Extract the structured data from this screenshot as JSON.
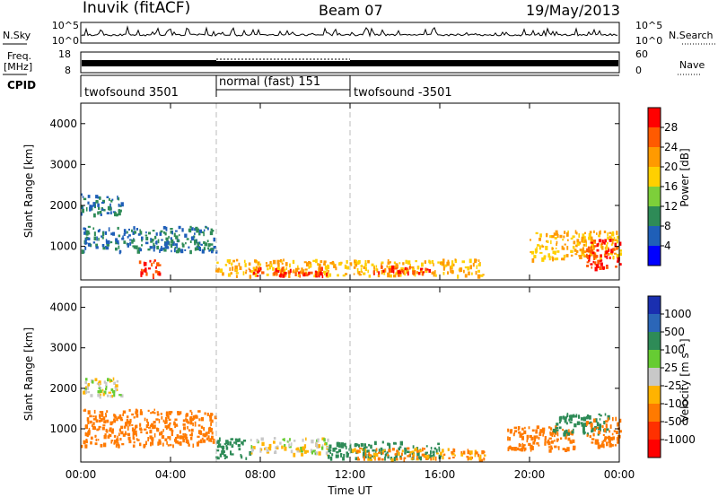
{
  "header": {
    "title": "Inuvik (fitACF)",
    "beam": "Beam 07",
    "date": "19/May/2013"
  },
  "sky_panel": {
    "left_label": "N.Sky",
    "right_label": "N.Search",
    "left_ticks": [
      "10^5",
      "10^0"
    ],
    "right_ticks": [
      "10^5",
      "10^0"
    ]
  },
  "freq_panel": {
    "left_label_line1": "Freq.",
    "left_label_line2": "[MHz]",
    "right_label": "Nave",
    "left_ticks": [
      "18",
      "8"
    ],
    "right_ticks": [
      "60",
      "0"
    ]
  },
  "cpid": {
    "label": "CPID",
    "segments": [
      {
        "text": "twofsound 3501",
        "start_hour": 0,
        "end_hour": 6
      },
      {
        "text": "normal (fast) 151",
        "start_hour": 6,
        "end_hour": 12
      },
      {
        "text": "twofsound -3501",
        "start_hour": 12,
        "end_hour": 24
      }
    ]
  },
  "x_axis": {
    "title": "Time UT",
    "ticks": [
      "00:00",
      "04:00",
      "08:00",
      "12:00",
      "16:00",
      "20:00",
      "00:00"
    ],
    "tick_hours": [
      0,
      4,
      8,
      12,
      16,
      20,
      24
    ]
  },
  "chart_data": [
    {
      "type": "heatmap",
      "title": "",
      "ylabel": "Slant Range [km]",
      "xlabel": "",
      "xlim": [
        0,
        24
      ],
      "ylim": [
        180,
        4500
      ],
      "yticks": [
        1000,
        2000,
        3000,
        4000
      ],
      "colorbar": {
        "label": "Power [dB]",
        "ticks": [
          "28",
          "24",
          "20",
          "16",
          "12",
          "8",
          "4"
        ],
        "colors": [
          "#ff0000",
          "#ff5a00",
          "#ff9a00",
          "#ffd000",
          "#7dcf3a",
          "#2e8b57",
          "#1f5fb8",
          "#0000ff"
        ]
      },
      "regions": [
        {
          "x": [
            0.0,
            1.8
          ],
          "y": [
            1800,
            2300
          ],
          "value": 8
        },
        {
          "x": [
            0.0,
            6.0
          ],
          "y": [
            900,
            1500
          ],
          "value": 8
        },
        {
          "x": [
            2.5,
            3.5
          ],
          "y": [
            300,
            700
          ],
          "value": 28
        },
        {
          "x": [
            6.0,
            12.0
          ],
          "y": [
            300,
            700
          ],
          "value": 20
        },
        {
          "x": [
            7.5,
            11.0
          ],
          "y": [
            300,
            500
          ],
          "value": 28
        },
        {
          "x": [
            12.0,
            18.0
          ],
          "y": [
            300,
            700
          ],
          "value": 20
        },
        {
          "x": [
            13.0,
            15.5
          ],
          "y": [
            350,
            550
          ],
          "value": 28
        },
        {
          "x": [
            20.0,
            24.0
          ],
          "y": [
            700,
            1400
          ],
          "value": 20
        },
        {
          "x": [
            22.5,
            24.0
          ],
          "y": [
            500,
            1200
          ],
          "value": 28
        }
      ]
    },
    {
      "type": "heatmap",
      "title": "",
      "ylabel": "Slant Range [km]",
      "xlabel": "Time UT",
      "xlim": [
        0,
        24
      ],
      "ylim": [
        180,
        4500
      ],
      "yticks": [
        1000,
        2000,
        3000,
        4000
      ],
      "colorbar": {
        "label": "Velocity [m s⁻¹]",
        "ticks": [
          "1000",
          "500",
          "100",
          "25",
          "-25",
          "-100",
          "-500",
          "-1000"
        ],
        "colors": [
          "#1a2fb0",
          "#2b66b8",
          "#2e8b57",
          "#66cc33",
          "#c8c8c8",
          "#ffb300",
          "#ff7a00",
          "#ff3000",
          "#ff0000"
        ]
      },
      "regions": [
        {
          "x": [
            0.0,
            1.8
          ],
          "y": [
            1800,
            2300
          ],
          "value": 0
        },
        {
          "x": [
            0.0,
            6.0
          ],
          "y": [
            600,
            1500
          ],
          "value": -300
        },
        {
          "x": [
            6.0,
            7.5
          ],
          "y": [
            300,
            800
          ],
          "value": 300
        },
        {
          "x": [
            7.5,
            11.0
          ],
          "y": [
            400,
            800
          ],
          "value": 0
        },
        {
          "x": [
            11.0,
            16.0
          ],
          "y": [
            300,
            700
          ],
          "value": 300
        },
        {
          "x": [
            12.0,
            18.0
          ],
          "y": [
            250,
            550
          ],
          "value": -100
        },
        {
          "x": [
            19.0,
            22.0
          ],
          "y": [
            500,
            1100
          ],
          "value": -300
        },
        {
          "x": [
            21.0,
            23.5
          ],
          "y": [
            900,
            1400
          ],
          "value": 300
        },
        {
          "x": [
            22.5,
            24.0
          ],
          "y": [
            600,
            1300
          ],
          "value": -300
        }
      ]
    }
  ]
}
